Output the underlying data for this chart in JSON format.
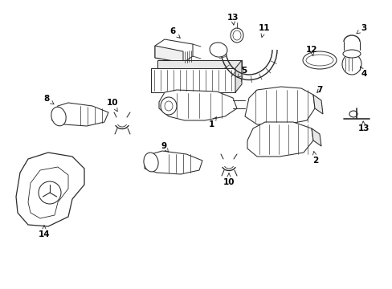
{
  "bg_color": "#ffffff",
  "line_color": "#2a2a2a",
  "label_color": "#000000",
  "font_size": 7.5,
  "lw": 0.75
}
